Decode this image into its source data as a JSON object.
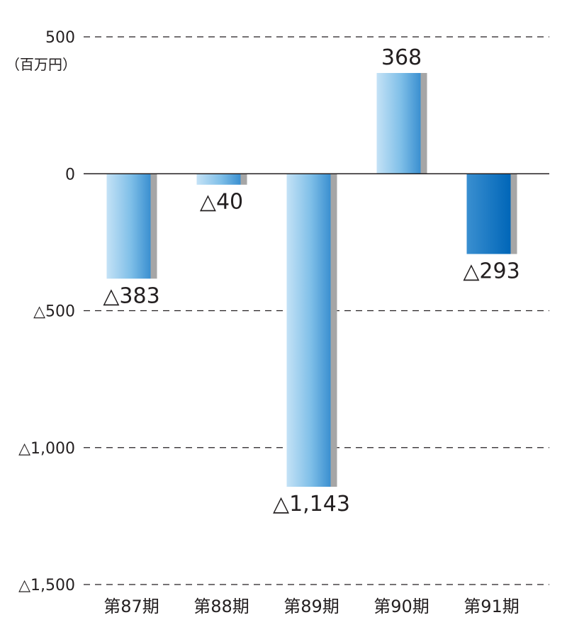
{
  "chart_data": {
    "type": "bar",
    "unit_label": "（百万円）",
    "categories": [
      "第87期",
      "第88期",
      "第89期",
      "第90期",
      "第91期"
    ],
    "values": [
      -383,
      -40,
      -1143,
      368,
      -293
    ],
    "value_labels": [
      "△383",
      "△40",
      "△1,143",
      "368",
      "△293"
    ],
    "ylim": [
      -1500,
      500
    ],
    "yticks": [
      500,
      0,
      -500,
      -1000,
      -1500
    ],
    "ytick_labels": [
      "500",
      "0",
      "△500",
      "△1,000",
      "△1,500"
    ],
    "grid": "dashed",
    "legend": "none",
    "highlight_index": 4,
    "colors": {
      "gradient_light": "#c4e2f6",
      "gradient_mid": "#7fbfe8",
      "gradient_dark": "#3a8fd0",
      "highlight_light": "#3a8fd0",
      "highlight_dark": "#0066b8",
      "shadow": "#a6a6a6",
      "axis": "#231f20",
      "grid": "#231f20",
      "text": "#231f20"
    }
  }
}
